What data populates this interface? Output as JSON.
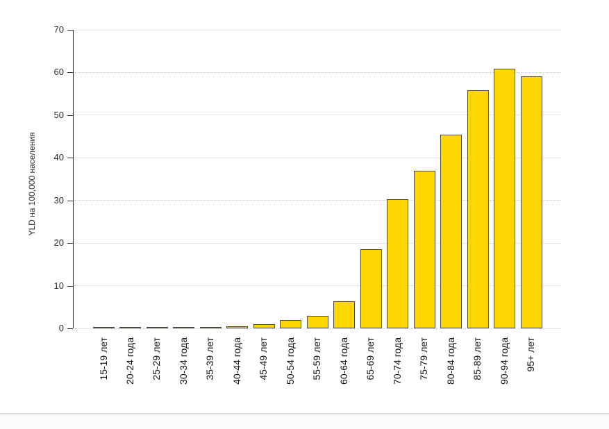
{
  "chart_data": {
    "type": "bar",
    "title": "",
    "xlabel": "",
    "ylabel": "YLD на 100,000 населения",
    "ylim": [
      0,
      70
    ],
    "yticks": [
      0,
      10,
      20,
      30,
      40,
      50,
      60,
      70
    ],
    "grid": "horizontal dotted",
    "legend": "none",
    "bar_color": "#FFD700",
    "bar_border_color": "#4c4a39",
    "gridline_color": "#c9c9c9",
    "axis_color": "#2b2b2b",
    "categories": [
      "15-19 лет",
      "20-24 года",
      "25-29 лет",
      "30-34 года",
      "35-39 лет",
      "40-44 года",
      "45-49 лет",
      "50-54 года",
      "55-59 лет",
      "60-64 года",
      "65-69 лет",
      "70-74 года",
      "75-79 лет",
      "80-84 года",
      "85-89 лет",
      "90-94 года",
      "95+  лет"
    ],
    "values": [
      0.05,
      0.2,
      0.2,
      0.2,
      0.2,
      0.5,
      1.0,
      1.9,
      2.9,
      6.4,
      18.5,
      30.3,
      37.0,
      45.4,
      55.9,
      60.9,
      59.1
    ]
  }
}
